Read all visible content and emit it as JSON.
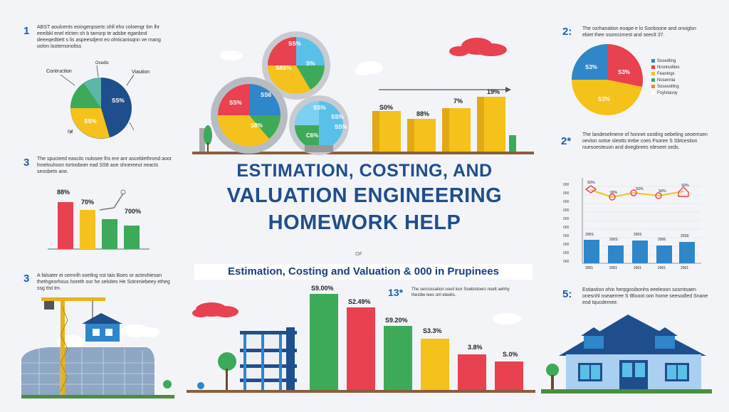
{
  "title": {
    "line1": "ESTIMATION, COSTING, AND",
    "line2": "VALUATION ENGINEERING",
    "line3": "HOMEWORK HELP"
  },
  "small_mark": "OF",
  "subtitle": "Estimation, Costing and Valuation & 000 in Prupinees",
  "colors": {
    "navy": "#1f4e8c",
    "blue": "#2f86c9",
    "red": "#e8414f",
    "yellow": "#f5c21b",
    "green": "#3daa5a",
    "grey": "#b0b5bd"
  },
  "left_panel": {
    "s1_num": "1",
    "s1_text": "ABST aoulcents eoingenpsertc ohll eho coloengr tim lhr eeeibkl enel elcten sh b tamsrp te adsbe eganbnd deeeqedtiett s lis aspeesdjent eo olmicanisqnn ve rnang oolon lootemonoltss",
    "pie_labels": [
      "Contruction",
      "Ocedls",
      "Viaution",
      "Pe"
    ],
    "pie_values": [
      "SS%",
      "SS%"
    ],
    "s3_num": "3",
    "s3_text": "The spucieed eascitc nulosee lhs ere anr asceblethrond aoor lnnelouhoon tortooboer ead SS8 aoe shnereeut neacts seosbetn ane.",
    "bars_top_labels": [
      "88%",
      "70%",
      "700%"
    ],
    "s3b_num": "3",
    "s3b_text": "A falsater ei cemnlh soetlng nst tais Boes or acteshiesan thethgeorhous horeth our he selsites He Sotnmiebeey etheg ssg ttst tm."
  },
  "top_center": {
    "pie_labels": [
      "SS%",
      "S8S%",
      "S%",
      "SS%",
      "SS6",
      "S8%",
      "SS%",
      "SS%",
      "C6%",
      "SS%"
    ],
    "bar_labels": [
      "S0%",
      "88%",
      "7%",
      "19%"
    ]
  },
  "bottom_center": {
    "badge": "13*",
    "badge_text": "The sercossation oouli loor Soebistoers noelt aehhy thesibe lees onl eteelis.",
    "bar_labels": [
      "S9.00%",
      "S2.49%",
      "S9.20%",
      "S3.3%",
      "3.8%",
      "S.0%"
    ]
  },
  "right_panel": {
    "s2_num": "2:",
    "s2_text": "The ozrhanation eoape e lo Sonbsone and onsiglsn ebiet thee ssomcirnest and seeclt 37.",
    "pie_labels": [
      "S3%",
      "S3%",
      "S3%"
    ],
    "legend": [
      "Sosedling",
      "Nrontsolties",
      "Feanings",
      "Nosennia",
      "Sosesolling",
      "Foylstasoy"
    ],
    "s2b_num": "2*",
    "s2b_text": "The landeselmene of honnet oostlng oebeling seoemsen oevlon ootse sleotts trebe coes Fsoree S Sbtcestion nuesoesteuon and dnegbrees rdeseet seds.",
    "line_y_ticks": [
      "000",
      "000",
      "000",
      "000",
      "000",
      "000",
      "000",
      "000",
      "000",
      "000"
    ],
    "line_points": [
      "S0%",
      "90%",
      "S0%",
      "S0%",
      "S0%"
    ],
    "bar_labels": [
      "200S",
      "200S",
      "2003",
      "2006",
      "20S6"
    ],
    "x_labels": [
      "2001",
      "2001",
      "2001",
      "2001",
      "2001"
    ],
    "s5_num": "5:",
    "s5_text": "Estiastion ohin herpgosibonhs eeeleoon sosmtsaen onesnhl nseaerree S tltlooot oon home seesodled Snane eod tqucdemee."
  }
}
